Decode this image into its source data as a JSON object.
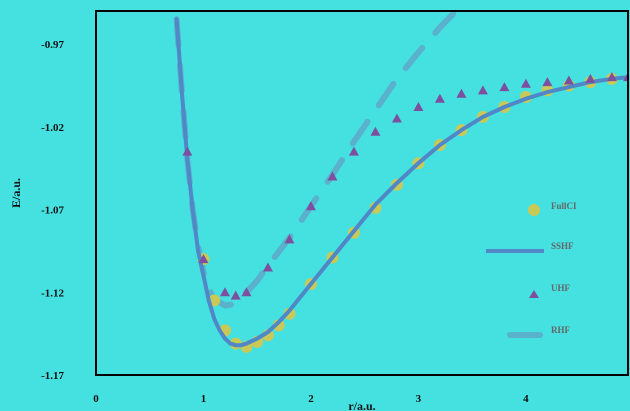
{
  "colors": {
    "background": "#45e0e0",
    "fullci": "#c9c957",
    "sshf": "#4f87c7",
    "uhf": "#7d4f9e",
    "rhf": "#5ab1cc",
    "axes": "#000000"
  },
  "chart_data": {
    "type": "line",
    "title": "",
    "xlabel": "r/a.u.",
    "ylabel": "E/a.u.",
    "xlim": [
      0,
      4.95
    ],
    "ylim": [
      -1.17,
      -0.95
    ],
    "xticks": [
      "0",
      "1",
      "2",
      "3",
      "4"
    ],
    "xtick_values": [
      0,
      1,
      2,
      3,
      4
    ],
    "yticks": [
      "-0.97",
      "-1.02",
      "-1.07",
      "-1.12",
      "-1.17"
    ],
    "ytick_values": [
      -0.97,
      -1.02,
      -1.07,
      -1.12,
      -1.17
    ],
    "legend_position": "right",
    "series": [
      {
        "name": "FullCI",
        "style": "markers-circle",
        "x": [
          1.0,
          1.1,
          1.2,
          1.3,
          1.4,
          1.5,
          1.6,
          1.7,
          1.8,
          2.0,
          2.2,
          2.4,
          2.6,
          2.8,
          3.0,
          3.2,
          3.4,
          3.6,
          3.8,
          4.0,
          4.2,
          4.4,
          4.6,
          4.8
        ],
        "y": [
          -1.1,
          -1.125,
          -1.143,
          -1.151,
          -1.153,
          -1.15,
          -1.146,
          -1.14,
          -1.133,
          -1.115,
          -1.099,
          -1.084,
          -1.069,
          -1.055,
          -1.042,
          -1.031,
          -1.022,
          -1.014,
          -1.008,
          -1.002,
          -0.998,
          -0.995,
          -0.993,
          -0.991
        ]
      },
      {
        "name": "SSHF",
        "style": "solid-line",
        "x": [
          0.75,
          0.8,
          0.85,
          0.9,
          0.95,
          1.0,
          1.05,
          1.1,
          1.15,
          1.2,
          1.25,
          1.3,
          1.35,
          1.4,
          1.5,
          1.6,
          1.7,
          1.8,
          1.9,
          2.0,
          2.2,
          2.4,
          2.6,
          2.8,
          3.0,
          3.2,
          3.4,
          3.6,
          3.8,
          4.0,
          4.2,
          4.4,
          4.6,
          4.8,
          4.95
        ],
        "y": [
          -0.955,
          -1.0,
          -1.04,
          -1.07,
          -1.095,
          -1.11,
          -1.125,
          -1.136,
          -1.143,
          -1.148,
          -1.151,
          -1.152,
          -1.152,
          -1.151,
          -1.148,
          -1.144,
          -1.138,
          -1.131,
          -1.123,
          -1.115,
          -1.099,
          -1.083,
          -1.067,
          -1.054,
          -1.042,
          -1.031,
          -1.022,
          -1.014,
          -1.008,
          -1.003,
          -0.999,
          -0.996,
          -0.993,
          -0.991,
          -0.99
        ]
      },
      {
        "name": "UHF",
        "style": "markers-triangle",
        "x": [
          0.85,
          1.0,
          1.2,
          1.3,
          1.4,
          1.6,
          1.8,
          2.0,
          2.2,
          2.4,
          2.6,
          2.8,
          3.0,
          3.2,
          3.4,
          3.6,
          3.8,
          4.0,
          4.2,
          4.4,
          4.6,
          4.8,
          4.95
        ],
        "y": [
          -1.035,
          -1.1,
          -1.12,
          -1.122,
          -1.12,
          -1.105,
          -1.088,
          -1.068,
          -1.05,
          -1.035,
          -1.023,
          -1.015,
          -1.008,
          -1.003,
          -1.0,
          -0.998,
          -0.996,
          -0.994,
          -0.993,
          -0.992,
          -0.991,
          -0.99,
          -0.99
        ]
      },
      {
        "name": "RHF",
        "style": "dashed-line",
        "x": [
          0.75,
          0.8,
          0.85,
          0.9,
          0.95,
          1.0,
          1.05,
          1.1,
          1.2,
          1.3,
          1.4,
          1.5,
          1.6,
          1.8,
          2.0,
          2.2,
          2.4,
          2.6,
          2.8,
          3.0,
          3.2,
          3.35
        ],
        "y": [
          -0.955,
          -1.0,
          -1.04,
          -1.07,
          -1.092,
          -1.108,
          -1.118,
          -1.124,
          -1.128,
          -1.127,
          -1.12,
          -1.113,
          -1.104,
          -1.087,
          -1.068,
          -1.049,
          -1.029,
          -1.01,
          -0.991,
          -0.975,
          -0.96,
          -0.95
        ]
      }
    ]
  }
}
